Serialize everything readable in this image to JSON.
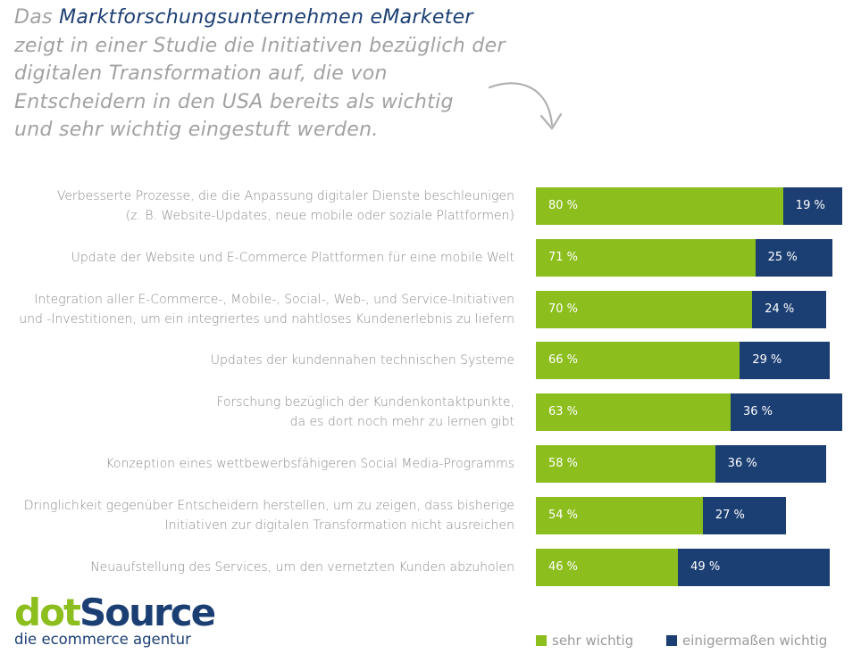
{
  "intro": {
    "line1_prefix": "Das ",
    "line1_highlight": "Marktforschungsunternehmen eMarketer",
    "line2": "zeigt in einer Studie die Initiativen bezüglich der",
    "line3": "digitalen Transformation auf, die von",
    "line4": "Entscheidern in den USA bereits als wichtig",
    "line5": "und sehr wichtig eingestuft werden."
  },
  "chart_data": {
    "type": "bar",
    "orientation": "horizontal",
    "stacked": true,
    "categories": [
      [
        "Verbesserte Prozesse, die die Anpassung digitaler Dienste beschleunigen",
        "(z. B. Website-Updates, neue mobile oder soziale Plattformen)"
      ],
      [
        "Update der Website und E-Commerce Plattformen für eine mobile Welt"
      ],
      [
        "Integration aller E-Commerce-, Mobile-, Social-, Web-, und Service-Initiativen",
        "und -Investitionen, um ein integriertes und nahtloses Kundenerlebnis zu liefern"
      ],
      [
        "Updates der kundennahen technischen Systeme"
      ],
      [
        "Forschung bezüglich der Kundenkontaktpunkte,",
        "da es dort noch mehr zu lernen gibt"
      ],
      [
        "Konzeption eines wettbewerbsfähigeren Social Media-Programms"
      ],
      [
        "Dringlichkeit gegenüber Entscheidern herstellen, um zu zeigen, dass bisherige",
        "Initiativen zur digitalen Transformation nicht ausreichen"
      ],
      [
        "Neuaufstellung des Services, um den vernetzten Kunden abzuholen"
      ]
    ],
    "series": [
      {
        "name": "sehr wichtig",
        "color": "#8cbe1e",
        "values": [
          80,
          71,
          70,
          66,
          63,
          58,
          54,
          46
        ],
        "labels": [
          "80 %",
          "71 %",
          "70 %",
          "66 %",
          "63 %",
          "58 %",
          "54 %",
          "46 %"
        ]
      },
      {
        "name": "einigermaßen wichtig",
        "color": "#1c3f73",
        "values": [
          19,
          25,
          24,
          29,
          36,
          36,
          27,
          49
        ],
        "labels": [
          "19 %",
          "25 %",
          "24 %",
          "29 %",
          "36 %",
          "36 %",
          "27 %",
          "49 %"
        ]
      }
    ],
    "xlim": [
      0,
      100
    ],
    "legend_position": "bottom-right",
    "grid": false
  },
  "logo": {
    "part1": "dot",
    "part2": "Source",
    "tagline": "die ecommerce agentur"
  }
}
